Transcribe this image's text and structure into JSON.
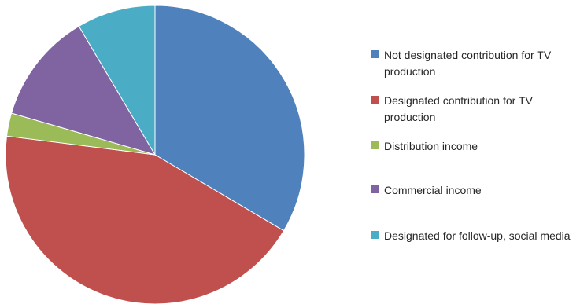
{
  "chart_data": {
    "type": "pie",
    "title": "",
    "slices": [
      {
        "label": "Not designated contribution for TV production",
        "value": 33.5,
        "color": "#4F81BD"
      },
      {
        "label": "Designated contribution for TV production",
        "value": 43.5,
        "color": "#C0504D"
      },
      {
        "label": "Distribution income",
        "value": 2.5,
        "color": "#9BBB59"
      },
      {
        "label": "Commercial income",
        "value": 12.0,
        "color": "#8064A2"
      },
      {
        "label": "Designated for follow-up, social media",
        "value": 8.5,
        "color": "#4BACC6"
      }
    ],
    "legend_position": "right",
    "start_angle": "top",
    "direction": "clockwise"
  }
}
